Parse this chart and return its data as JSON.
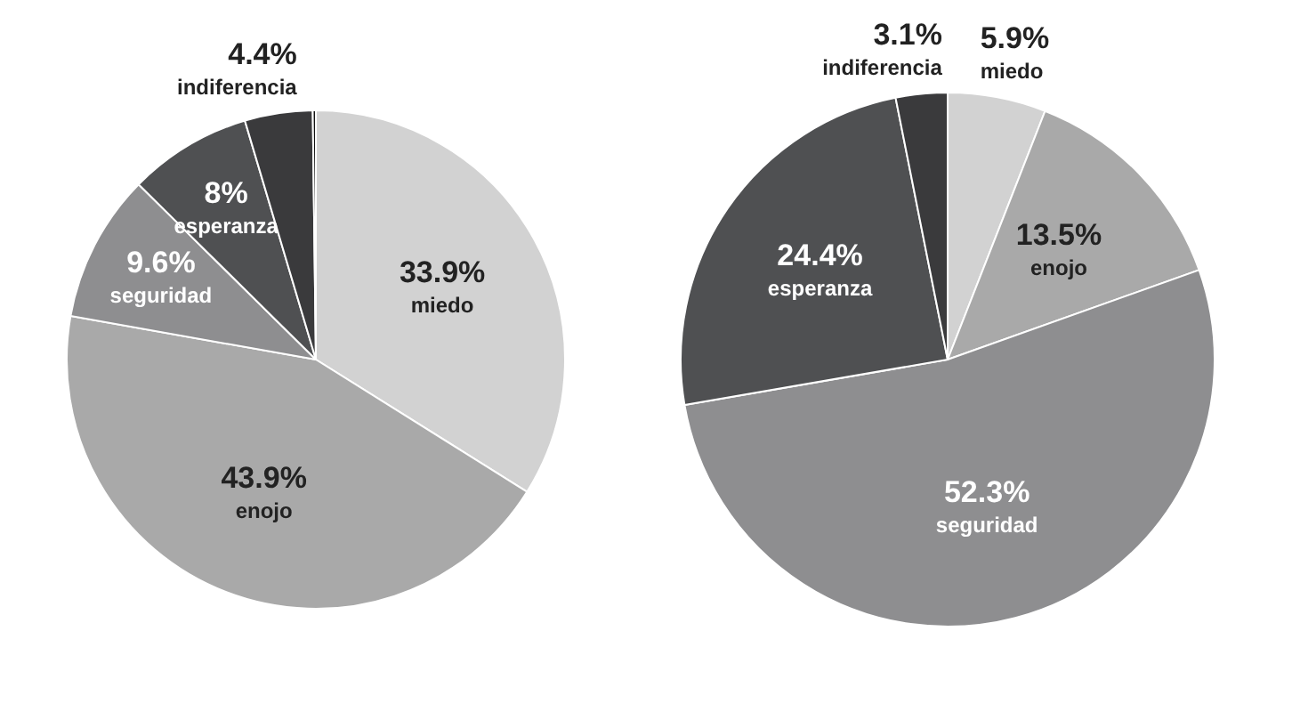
{
  "chart_data": [
    {
      "type": "pie",
      "categories": [
        "miedo",
        "enojo",
        "seguridad",
        "esperanza",
        "indiferencia",
        null
      ],
      "values": [
        33.9,
        43.9,
        9.6,
        8,
        4.4,
        0.2
      ],
      "colors": [
        "#d2d2d2",
        "#a9a9a9",
        "#8e8e90",
        "#4f5052",
        "#3a3a3c",
        "#111111"
      ],
      "value_labels": [
        "33.9%",
        "43.9%",
        "9.6%",
        "8%",
        "4.4%",
        null
      ]
    },
    {
      "type": "pie",
      "categories": [
        "miedo",
        "enojo",
        "seguridad",
        "esperanza",
        "indiferencia"
      ],
      "values": [
        5.9,
        13.5,
        52.3,
        24.4,
        3.1
      ],
      "colors": [
        "#d2d2d2",
        "#a9a9a9",
        "#8e8e90",
        "#4f5052",
        "#3a3a3c"
      ],
      "value_labels": [
        "5.9%",
        "13.5%",
        "52.3%",
        "24.4%",
        "3.1%"
      ]
    }
  ]
}
